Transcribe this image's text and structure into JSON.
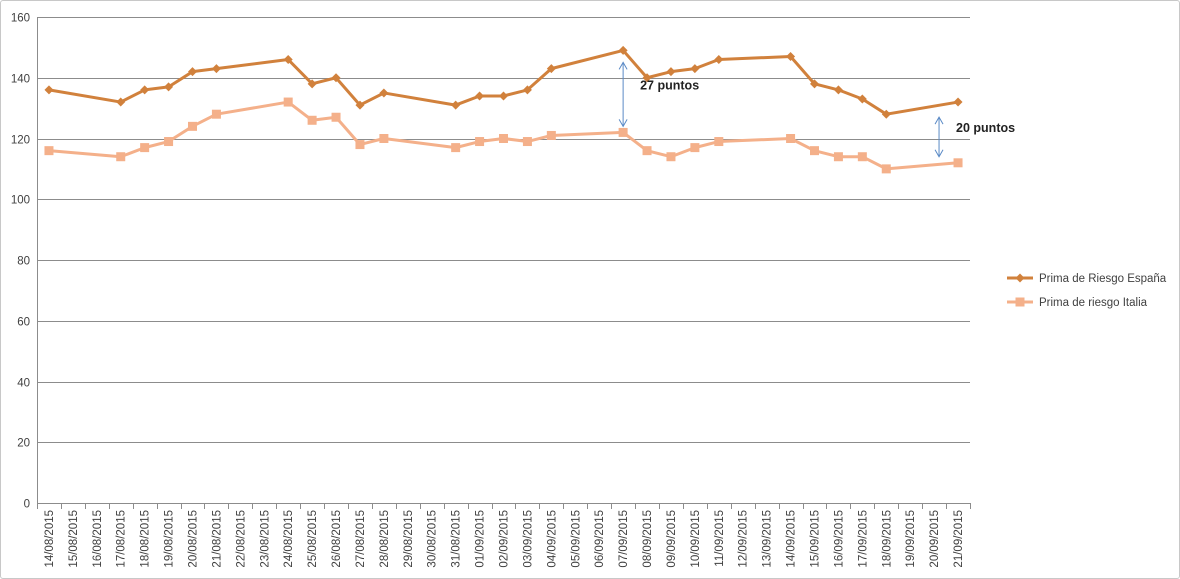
{
  "chart_data": {
    "type": "line",
    "title": "",
    "xlabel": "",
    "ylabel": "",
    "ylim": [
      0,
      160
    ],
    "y_ticks": [
      0,
      20,
      40,
      60,
      80,
      100,
      120,
      140,
      160
    ],
    "grid": "horizontal",
    "legend_position": "right",
    "categories": [
      "14/08/2015",
      "15/08/2015",
      "16/08/2015",
      "17/08/2015",
      "18/08/2015",
      "19/08/2015",
      "20/08/2015",
      "21/08/2015",
      "22/08/2015",
      "23/08/2015",
      "24/08/2015",
      "25/08/2015",
      "26/08/2015",
      "27/08/2015",
      "28/08/2015",
      "29/08/2015",
      "30/08/2015",
      "31/08/2015",
      "01/09/2015",
      "02/09/2015",
      "03/09/2015",
      "04/09/2015",
      "05/09/2015",
      "06/09/2015",
      "07/09/2015",
      "08/09/2015",
      "09/09/2015",
      "10/09/2015",
      "11/09/2015",
      "12/09/2015",
      "13/09/2015",
      "14/09/2015",
      "15/09/2015",
      "16/09/2015",
      "17/09/2015",
      "18/09/2015",
      "19/09/2015",
      "20/09/2015",
      "21/09/2015"
    ],
    "series": [
      {
        "name": "Prima de Riesgo España",
        "color": "#D1813C",
        "marker": "diamond",
        "points": [
          [
            "14/08/2015",
            136
          ],
          [
            "17/08/2015",
            132
          ],
          [
            "18/08/2015",
            136
          ],
          [
            "19/08/2015",
            137
          ],
          [
            "20/08/2015",
            142
          ],
          [
            "21/08/2015",
            143
          ],
          [
            "24/08/2015",
            146
          ],
          [
            "25/08/2015",
            138
          ],
          [
            "26/08/2015",
            140
          ],
          [
            "27/08/2015",
            131
          ],
          [
            "28/08/2015",
            135
          ],
          [
            "31/08/2015",
            131
          ],
          [
            "01/09/2015",
            134
          ],
          [
            "02/09/2015",
            134
          ],
          [
            "03/09/2015",
            136
          ],
          [
            "04/09/2015",
            143
          ],
          [
            "07/09/2015",
            149
          ],
          [
            "08/09/2015",
            140
          ],
          [
            "09/09/2015",
            142
          ],
          [
            "10/09/2015",
            143
          ],
          [
            "11/09/2015",
            146
          ],
          [
            "14/09/2015",
            147
          ],
          [
            "15/09/2015",
            138
          ],
          [
            "16/09/2015",
            136
          ],
          [
            "17/09/2015",
            133
          ],
          [
            "18/09/2015",
            128
          ],
          [
            "21/09/2015",
            132
          ]
        ]
      },
      {
        "name": "Prima de riesgo Italia",
        "color": "#F4B08A",
        "marker": "square",
        "points": [
          [
            "14/08/2015",
            116
          ],
          [
            "17/08/2015",
            114
          ],
          [
            "18/08/2015",
            117
          ],
          [
            "19/08/2015",
            119
          ],
          [
            "20/08/2015",
            124
          ],
          [
            "21/08/2015",
            128
          ],
          [
            "24/08/2015",
            132
          ],
          [
            "25/08/2015",
            126
          ],
          [
            "26/08/2015",
            127
          ],
          [
            "27/08/2015",
            118
          ],
          [
            "28/08/2015",
            120
          ],
          [
            "31/08/2015",
            117
          ],
          [
            "01/09/2015",
            119
          ],
          [
            "02/09/2015",
            120
          ],
          [
            "03/09/2015",
            119
          ],
          [
            "04/09/2015",
            121
          ],
          [
            "07/09/2015",
            122
          ],
          [
            "08/09/2015",
            116
          ],
          [
            "09/09/2015",
            114
          ],
          [
            "10/09/2015",
            117
          ],
          [
            "11/09/2015",
            119
          ],
          [
            "14/09/2015",
            120
          ],
          [
            "15/09/2015",
            116
          ],
          [
            "16/09/2015",
            114
          ],
          [
            "17/09/2015",
            114
          ],
          [
            "18/09/2015",
            110
          ],
          [
            "21/09/2015",
            112
          ]
        ]
      }
    ],
    "annotations": [
      {
        "text": "27 puntos",
        "x": "07/09/2015",
        "y_from": 149,
        "y_to": 122
      },
      {
        "text": "20 puntos",
        "x": "21/09/2015",
        "y_from": 131,
        "y_to": 112
      }
    ],
    "arrow_color": "#5A8AC6"
  }
}
